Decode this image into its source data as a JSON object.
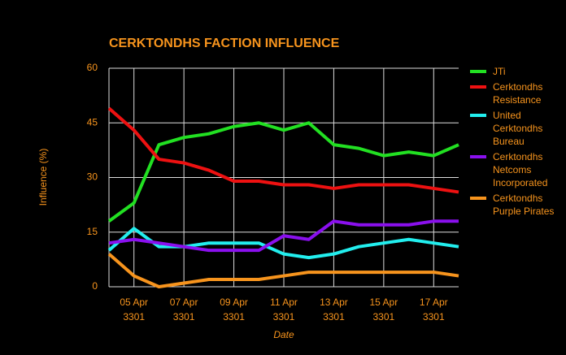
{
  "chart_data": {
    "type": "line",
    "title": "CERKTONDHS FACTION INFLUENCE",
    "x_label": "Date",
    "y_label": "Influence (%)",
    "categories": [
      null,
      "05 Apr 3301",
      null,
      "07 Apr 3301",
      null,
      "09 Apr 3301",
      null,
      "11 Apr 3301",
      null,
      "13 Apr 3301",
      null,
      "15 Apr 3301",
      null,
      "17 Apr 3301",
      null
    ],
    "series": [
      {
        "name": "JTi",
        "color": "#22e022",
        "values": [
          18,
          23,
          39,
          41,
          42,
          44,
          45,
          43,
          45,
          39,
          38,
          36,
          37,
          36,
          39
        ]
      },
      {
        "name": "Cerktondhs Resistance",
        "color": "#ee1111",
        "values": [
          49,
          43,
          35,
          34,
          32,
          29,
          29,
          28,
          28,
          27,
          28,
          28,
          28,
          27,
          26
        ]
      },
      {
        "name": "United Cerktondhs Bureau",
        "color": "#22eeee",
        "values": [
          10,
          16,
          11,
          11,
          12,
          12,
          12,
          9,
          8,
          9,
          11,
          12,
          13,
          12,
          11
        ]
      },
      {
        "name": "Cerktondhs Netcoms Incorporated",
        "color": "#8a10ee",
        "values": [
          12,
          13,
          12,
          11,
          10,
          10,
          10,
          14,
          13,
          18,
          17,
          17,
          17,
          18,
          18
        ]
      },
      {
        "name": "Cerktondhs Purple Pirates",
        "color": "#f7941d",
        "values": [
          9,
          3,
          0,
          1,
          2,
          2,
          2,
          3,
          4,
          4,
          4,
          4,
          4,
          4,
          3
        ]
      }
    ],
    "ylim": [
      0,
      60
    ],
    "yticks": [
      0,
      15,
      30,
      45,
      60
    ],
    "grid": true,
    "legend": "right"
  }
}
